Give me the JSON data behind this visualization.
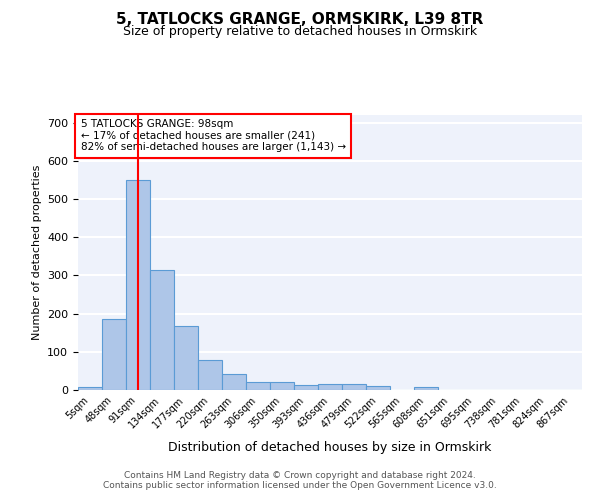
{
  "title": "5, TATLOCKS GRANGE, ORMSKIRK, L39 8TR",
  "subtitle": "Size of property relative to detached houses in Ormskirk",
  "xlabel": "Distribution of detached houses by size in Ormskirk",
  "ylabel": "Number of detached properties",
  "bin_labels": [
    "5sqm",
    "48sqm",
    "91sqm",
    "134sqm",
    "177sqm",
    "220sqm",
    "263sqm",
    "306sqm",
    "350sqm",
    "393sqm",
    "436sqm",
    "479sqm",
    "522sqm",
    "565sqm",
    "608sqm",
    "651sqm",
    "695sqm",
    "738sqm",
    "781sqm",
    "824sqm",
    "867sqm"
  ],
  "bar_values": [
    8,
    187,
    550,
    315,
    167,
    78,
    42,
    20,
    20,
    13,
    15,
    15,
    10,
    0,
    8,
    0,
    0,
    0,
    0,
    0,
    0
  ],
  "bar_color": "#aec6e8",
  "bar_edge_color": "#5b9bd5",
  "vline_x": 2,
  "vline_color": "red",
  "annotation_text": "5 TATLOCKS GRANGE: 98sqm\n← 17% of detached houses are smaller (241)\n82% of semi-detached houses are larger (1,143) →",
  "annotation_box_color": "white",
  "annotation_box_edge": "red",
  "ylim": [
    0,
    720
  ],
  "yticks": [
    0,
    100,
    200,
    300,
    400,
    500,
    600,
    700
  ],
  "footer_line1": "Contains HM Land Registry data © Crown copyright and database right 2024.",
  "footer_line2": "Contains public sector information licensed under the Open Government Licence v3.0.",
  "background_color": "#eef2fb",
  "grid_color": "white",
  "fig_background": "white"
}
